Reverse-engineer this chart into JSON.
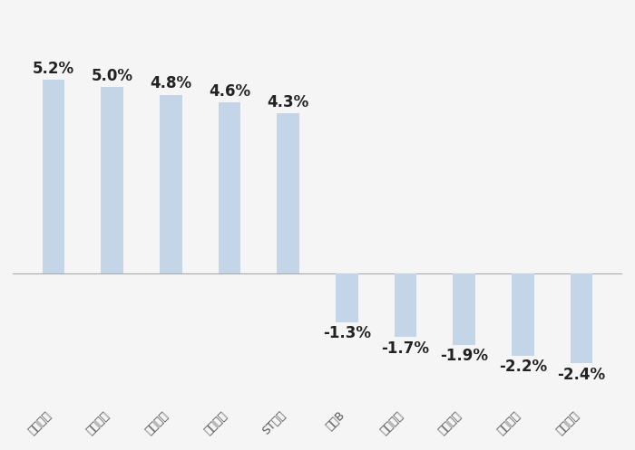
{
  "categories": [
    "交大昂立",
    "加加食品",
    "佳隆股份",
    "兰州黄河",
    "ST通葡",
    "张裕B",
    "老白干酒",
    "华统股份",
    "千味央厨",
    "燕京啤酒"
  ],
  "values": [
    5.2,
    5.0,
    4.8,
    4.6,
    4.3,
    -1.3,
    -1.7,
    -1.9,
    -2.2,
    -2.4
  ],
  "labels": [
    "5.2%",
    "5.0%",
    "4.8%",
    "4.6%",
    "4.3%",
    "-1.3%",
    "-1.7%",
    "-1.9%",
    "-2.2%",
    "-2.4%"
  ],
  "bar_color": "#c5d5e8",
  "background_color": "#f5f5f5",
  "label_fontsize": 12,
  "tick_fontsize": 9,
  "ylim": [
    -3.5,
    7.0
  ],
  "figwidth": 7.0,
  "figheight": 4.97,
  "bar_width": 0.38
}
